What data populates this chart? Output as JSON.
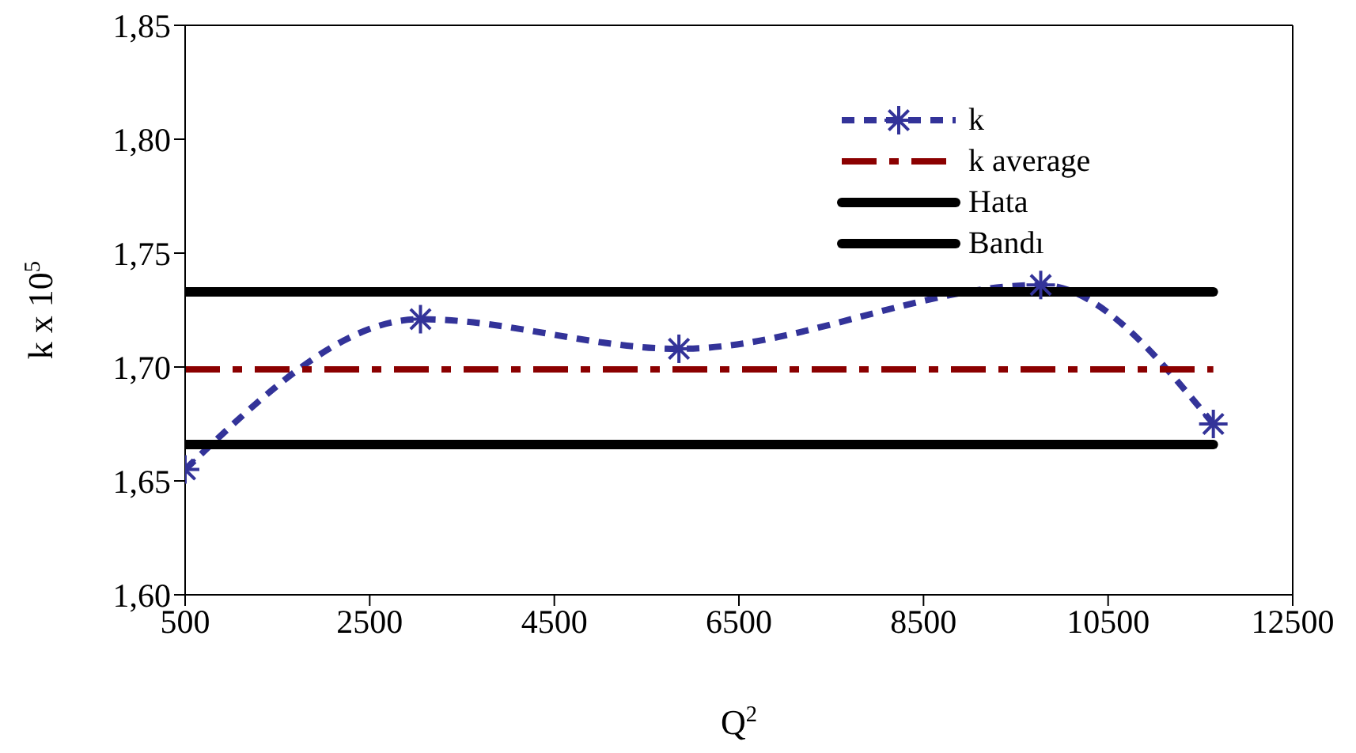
{
  "chart_data": {
    "type": "line",
    "xlabel": "Q$^{2}$",
    "ylabel": "k x 10$^{5}$",
    "series": [
      {
        "name": "k",
        "color": "#333399",
        "x": [
          500,
          3050,
          5850,
          9770,
          11640
        ],
        "values": [
          1.655,
          1.721,
          1.708,
          1.736,
          1.675
        ],
        "line_style": "dashed",
        "marker": "cross"
      },
      {
        "name": "k average",
        "color": "#8b0000",
        "x": [
          500,
          11640
        ],
        "values": [
          1.699,
          1.699
        ],
        "line_style": "dashed",
        "marker": "none"
      },
      {
        "name": "Hata",
        "color": "#000000",
        "x": [
          500,
          11640
        ],
        "values": [
          1.666,
          1.666
        ],
        "line_style": "solid",
        "marker": "none"
      },
      {
        "name": "Bandı",
        "color": "#000000",
        "x": [
          500,
          11640
        ],
        "values": [
          1.733,
          1.733
        ],
        "line_style": "solid",
        "marker": "none"
      }
    ],
    "xlim": [
      500,
      12500
    ],
    "xticks": [
      500,
      2500,
      4500,
      6500,
      8500,
      10500,
      12500
    ],
    "ylim": [
      1.6,
      1.85
    ],
    "yticks": [
      {
        "value": 1.6,
        "label": "1,60"
      },
      {
        "value": 1.65,
        "label": "1,65"
      },
      {
        "value": 1.7,
        "label": "1,70"
      },
      {
        "value": 1.75,
        "label": "1,75"
      },
      {
        "value": 1.8,
        "label": "1,80"
      },
      {
        "value": 1.85,
        "label": "1,85"
      }
    ],
    "legend": "top right"
  }
}
